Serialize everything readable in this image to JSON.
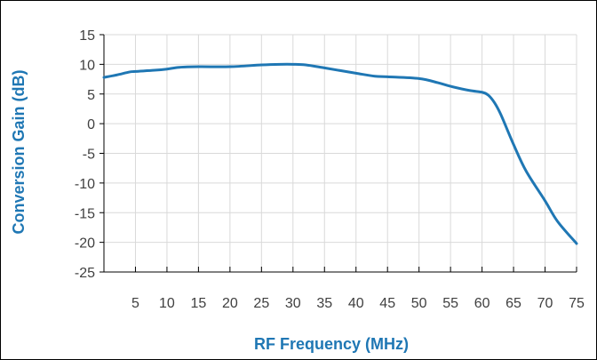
{
  "colors": {
    "series": "#1f77b4",
    "grid": "#d9d9d9",
    "axis": "#000000",
    "axis_title": "#1f77b4",
    "tick_text": "#404040"
  },
  "chart_data": {
    "type": "line",
    "title": "",
    "xlabel": "RF Frequency (MHz)",
    "ylabel": "Conversion Gain  (dB)",
    "xlim": [
      0,
      75
    ],
    "ylim": [
      -25,
      15
    ],
    "xticks": [
      5,
      10,
      15,
      20,
      25,
      30,
      35,
      40,
      45,
      50,
      55,
      60,
      65,
      70,
      75
    ],
    "yticks": [
      15,
      10,
      5,
      0,
      -5,
      -10,
      -15,
      -20,
      -25
    ],
    "xtick_labels": [
      "5",
      "10",
      "15",
      "20",
      "25",
      "30",
      "35",
      "40",
      "45",
      "50",
      "55",
      "60",
      "65",
      "70",
      "75"
    ],
    "ytick_labels": [
      "15",
      "10",
      "5",
      "0",
      "-5",
      "-10",
      "-15",
      "-20",
      "-25"
    ],
    "grid": true,
    "legend": "none",
    "series": [
      {
        "x": [
          0,
          2,
          4,
          5,
          8,
          10,
          12,
          15,
          20,
          25,
          28,
          30,
          32,
          35,
          40,
          43,
          45,
          50,
          53,
          55,
          58,
          60,
          61,
          62,
          63,
          65,
          67,
          70,
          72,
          75
        ],
        "y": [
          7.8,
          8.2,
          8.7,
          8.8,
          9.0,
          9.2,
          9.5,
          9.6,
          9.6,
          9.9,
          10.0,
          10.0,
          9.9,
          9.4,
          8.5,
          8.0,
          7.9,
          7.6,
          6.9,
          6.3,
          5.6,
          5.3,
          4.8,
          3.5,
          1.5,
          -3.5,
          -8.0,
          -13.0,
          -16.5,
          -20.2
        ]
      }
    ]
  }
}
